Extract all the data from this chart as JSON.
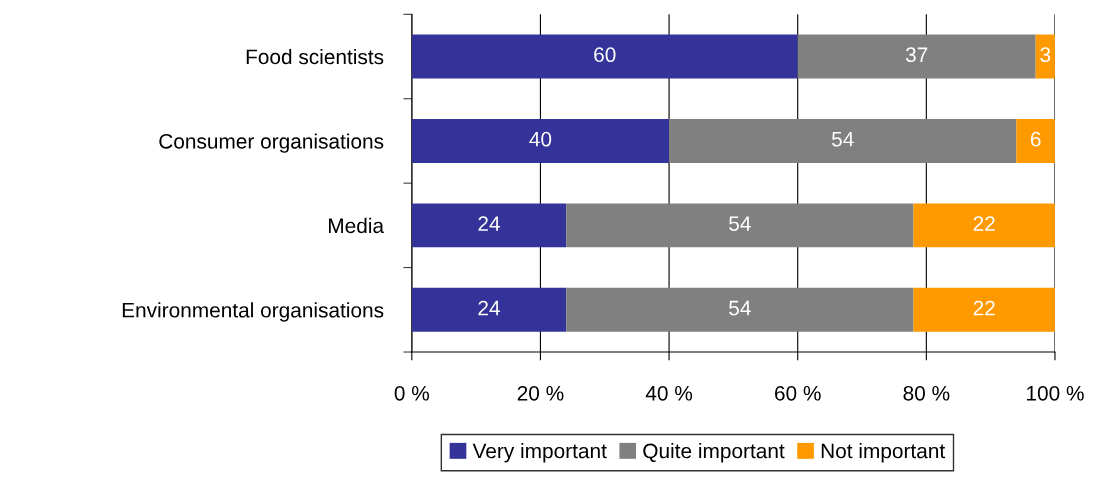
{
  "chart_data": {
    "type": "bar",
    "orientation": "horizontal",
    "stacked": true,
    "categories": [
      "Food scientists",
      "Consumer organisations",
      "Media",
      "Environmental organisations"
    ],
    "series": [
      {
        "name": "Very important",
        "color": "#333399",
        "values": [
          60,
          40,
          24,
          24
        ]
      },
      {
        "name": "Quite important",
        "color": "#808080",
        "values": [
          37,
          54,
          54,
          54
        ]
      },
      {
        "name": "Not important",
        "color": "#ff9900",
        "values": [
          3,
          6,
          22,
          22
        ]
      }
    ],
    "xlim": [
      0,
      100
    ],
    "xticks": [
      {
        "value": 0,
        "label": "0 %"
      },
      {
        "value": 20,
        "label": "20 %"
      },
      {
        "value": 40,
        "label": "40 %"
      },
      {
        "value": 60,
        "label": "60 %"
      },
      {
        "value": 80,
        "label": "80 %"
      },
      {
        "value": 100,
        "label": "100 %"
      }
    ],
    "grid": "x",
    "legend": "bottom",
    "data_labels": true
  }
}
